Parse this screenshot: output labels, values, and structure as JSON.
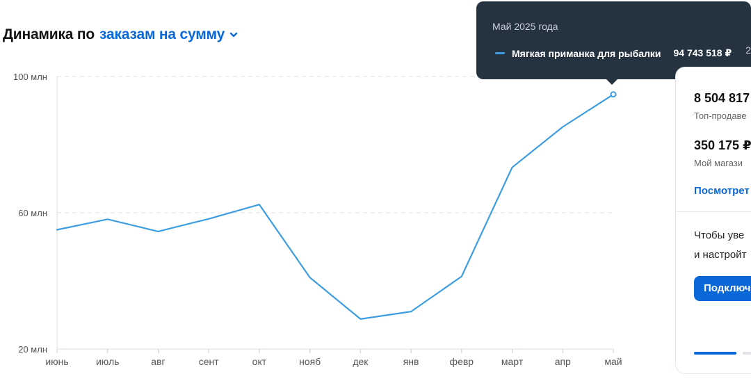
{
  "heading": {
    "prefix": "Динамика по",
    "metric": "заказам на сумму",
    "dropdown_icon": "chevron-down-icon"
  },
  "chart_data": {
    "type": "line",
    "categories": [
      "июнь",
      "июль",
      "авг",
      "сент",
      "окт",
      "нояб",
      "дек",
      "янв",
      "февр",
      "март",
      "апр",
      "май"
    ],
    "series": [
      {
        "name": "Мягкая приманка для рыбалки",
        "color": "#3d9de0",
        "values": [
          55.0,
          58.1,
          54.5,
          58.2,
          62.4,
          41.0,
          28.8,
          31.0,
          41.3,
          73.3,
          85.2,
          94.74
        ]
      }
    ],
    "y_ticks": [
      {
        "value": 100,
        "label": "100 млн"
      },
      {
        "value": 60,
        "label": "60 млн"
      },
      {
        "value": 20,
        "label": "20 млн"
      }
    ],
    "ylim": [
      20,
      100
    ],
    "grid": "horizontal dashed",
    "highlighted_index": 11
  },
  "tooltip": {
    "date": "Май 2025 года",
    "series_name": "Мягкая приманка для рыбалки",
    "value": "94 743 518 ₽",
    "extra": "2"
  },
  "side_card": {
    "value1": "8 504 817",
    "caption1": "Топ-продаве",
    "value2": "350 175 ₽",
    "caption2": "Мой магази",
    "link": "Посмотрет",
    "para_line1": "Чтобы уве",
    "para_line2": "и настройт",
    "button": "Подключ"
  }
}
